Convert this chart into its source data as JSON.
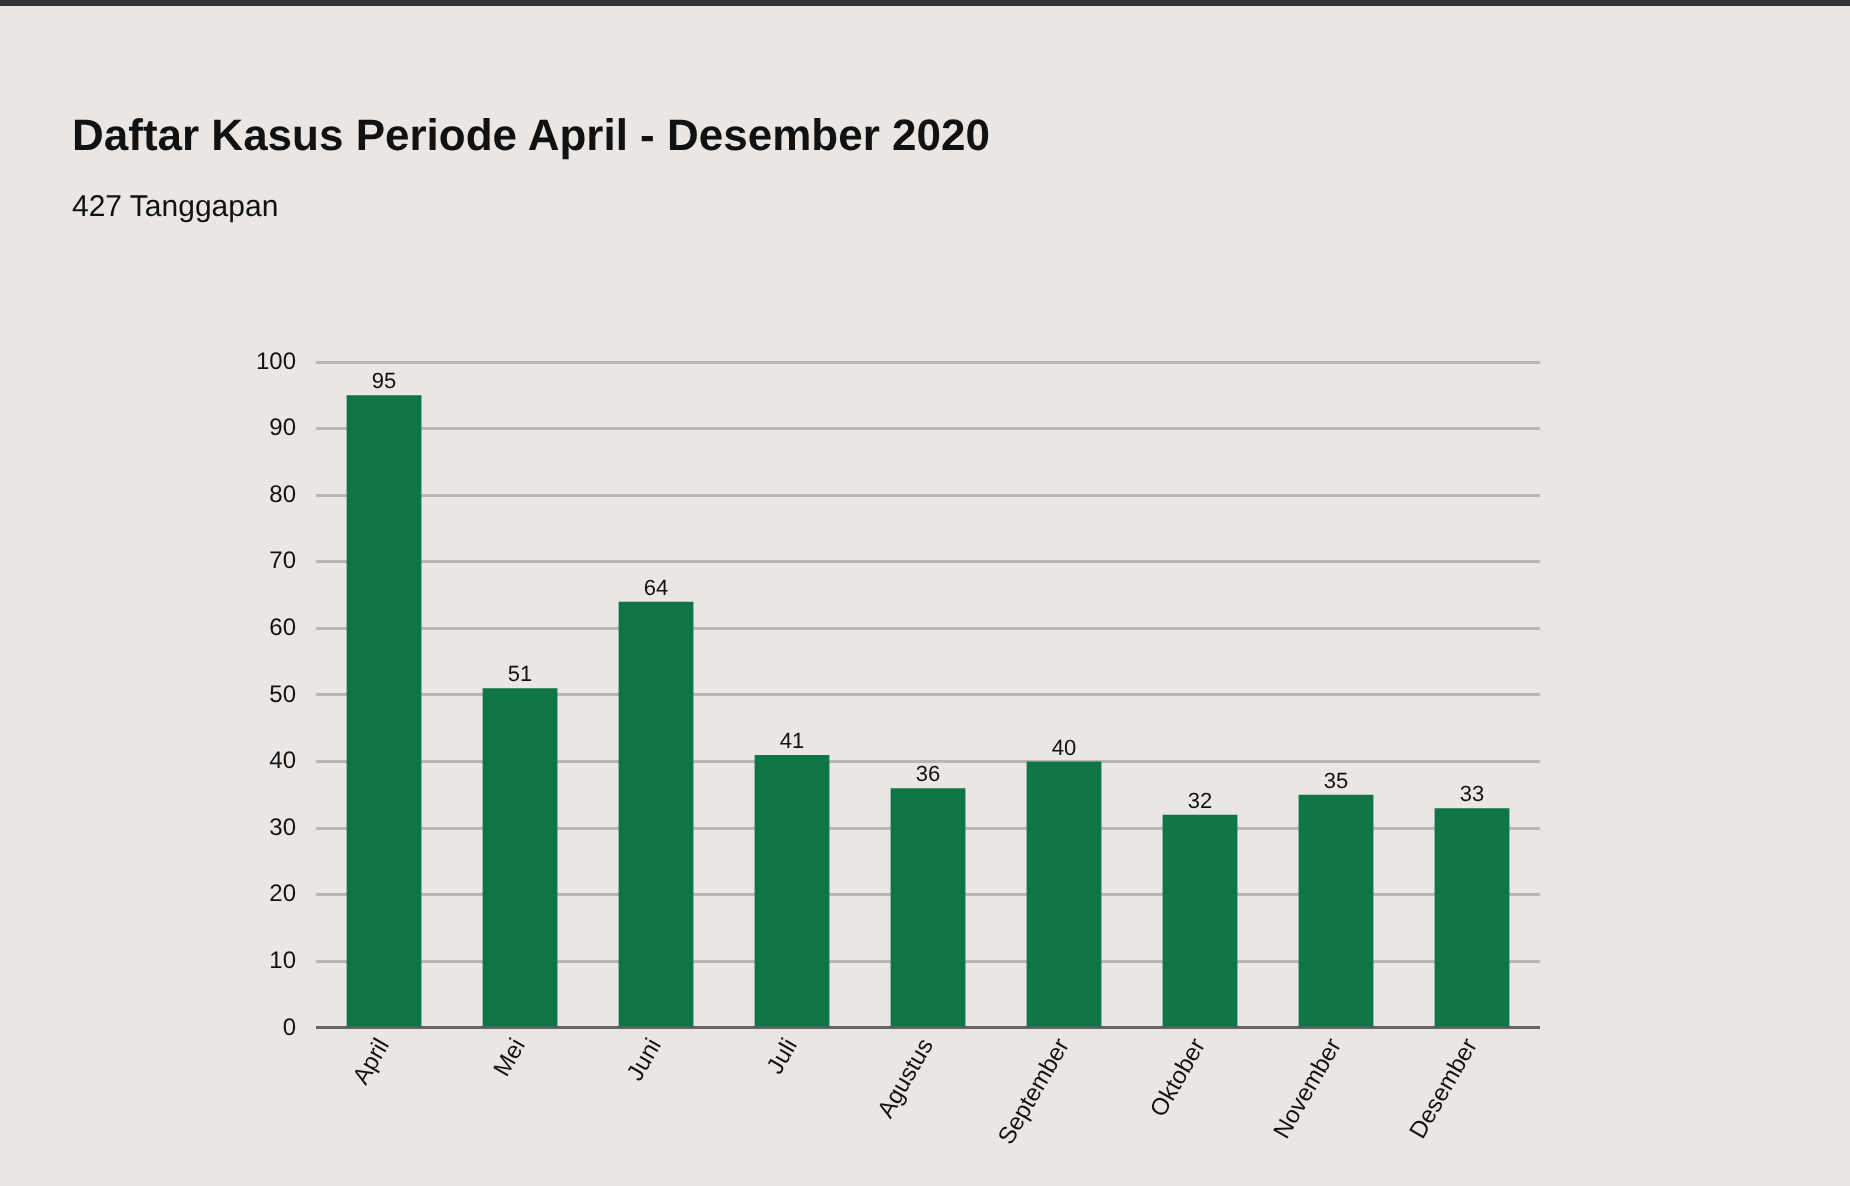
{
  "chart_data": {
    "type": "bar",
    "title": "Daftar Kasus Periode April - Desember 2020",
    "subtitle": "427 Tanggapan",
    "categories": [
      "April",
      "Mei",
      "Juni",
      "Juli",
      "Agustus",
      "September",
      "Oktober",
      "November",
      "Desember"
    ],
    "values": [
      95,
      51,
      64,
      41,
      36,
      40,
      32,
      35,
      33
    ],
    "color": "#0f7446",
    "ylim": [
      0,
      100
    ],
    "yticks": [
      0,
      10,
      20,
      30,
      40,
      50,
      60,
      70,
      80,
      90,
      100
    ],
    "grid": "y",
    "data_labels": true,
    "legend": false
  }
}
